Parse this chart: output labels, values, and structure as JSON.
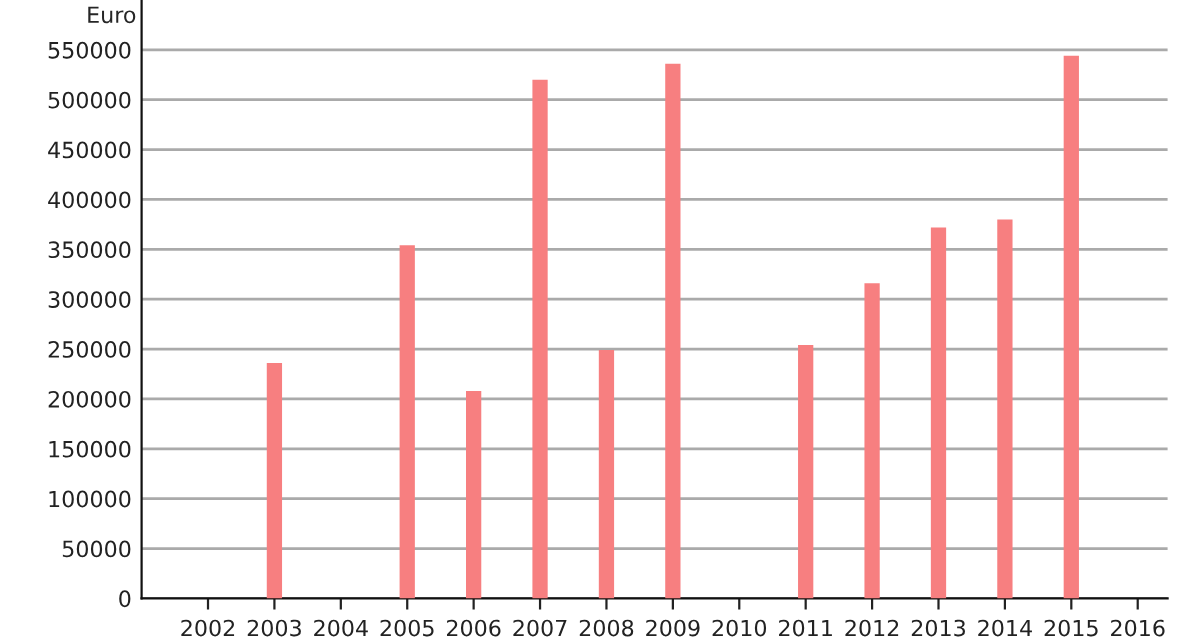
{
  "chart_data": {
    "type": "bar",
    "ylabel": "Euro",
    "categories": [
      "2002",
      "2003",
      "2004",
      "2005",
      "2006",
      "2007",
      "2008",
      "2009",
      "2010",
      "2011",
      "2012",
      "2013",
      "2014",
      "2015",
      "2016"
    ],
    "series": [
      {
        "color": "#f77f80",
        "values": [
          null,
          236000,
          null,
          354000,
          208000,
          520000,
          249000,
          536000,
          null,
          254000,
          316000,
          372000,
          380000,
          544000,
          null
        ]
      }
    ],
    "ylim": [
      0,
      600000
    ],
    "yticks": [
      0,
      50000,
      100000,
      150000,
      200000,
      250000,
      300000,
      350000,
      400000,
      450000,
      500000,
      550000
    ],
    "grid": "y"
  }
}
